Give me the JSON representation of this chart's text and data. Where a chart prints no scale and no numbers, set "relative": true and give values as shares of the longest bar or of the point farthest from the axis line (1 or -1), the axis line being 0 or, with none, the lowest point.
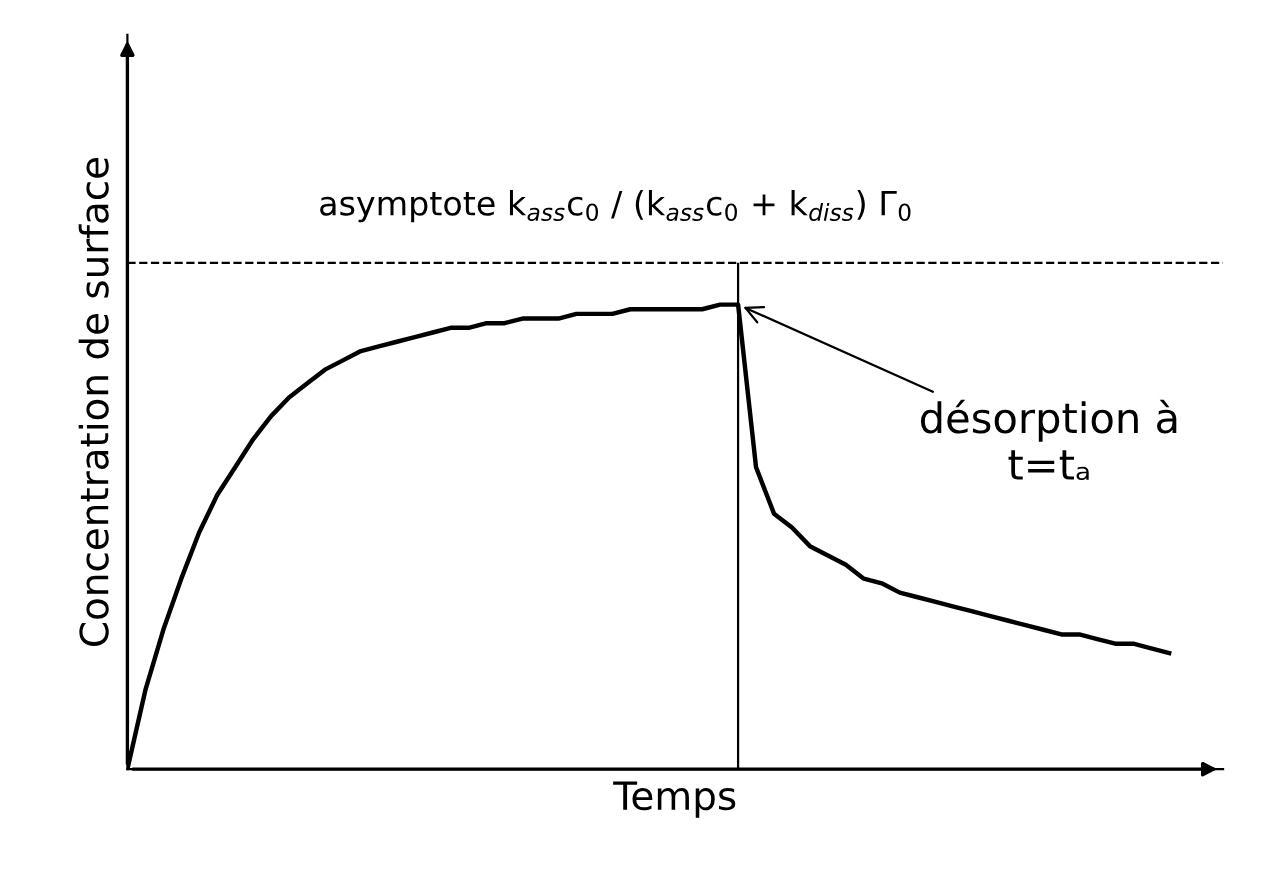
{
  "chart_data": {
    "type": "line",
    "relative": true,
    "xlabel": "Temps",
    "ylabel": "Concentration de surface",
    "categories": [
      null,
      null,
      null,
      null,
      null,
      null,
      null,
      null,
      null,
      null,
      null,
      null,
      null,
      null,
      null,
      null,
      null,
      null,
      null,
      null,
      null,
      null,
      null,
      null,
      null,
      null,
      null,
      null,
      null,
      null,
      null,
      null,
      null,
      null,
      null,
      null,
      null,
      null,
      null,
      null,
      null,
      null,
      null,
      null,
      null,
      null,
      null,
      null,
      null,
      null,
      null,
      null,
      null,
      null,
      null,
      null,
      null,
      null,
      null
    ],
    "series": [
      {
        "color": "#000000",
        "values": [
          0,
          0.17,
          0.3,
          0.41,
          0.51,
          0.59,
          0.65,
          0.71,
          0.76,
          0.8,
          0.83,
          0.86,
          0.88,
          0.9,
          0.91,
          0.92,
          0.93,
          0.94,
          0.95,
          0.95,
          0.96,
          0.96,
          0.97,
          0.97,
          0.97,
          0.98,
          0.98,
          0.98,
          0.99,
          0.99,
          0.99,
          0.99,
          0.99,
          1,
          1,
          0.65,
          0.55,
          0.52,
          0.48,
          0.46,
          0.44,
          0.41,
          0.4,
          0.38,
          0.37,
          0.36,
          0.35,
          0.34,
          0.33,
          0.32,
          0.31,
          0.3,
          0.29,
          0.29,
          0.28,
          0.27,
          0.27,
          0.26,
          0.25
        ]
      }
    ],
    "ref_lines": [
      {
        "axis": "y",
        "value": 1.09,
        "label": "asymptote k$_{ass}$c$_{0}$ / (k$_{ass}$c$_{0}$ + k$_{diss}$) Γ$_{0}$",
        "line_style": "dashed",
        "color": "#000000"
      }
    ],
    "annotations": [
      "désorption à\nt=tₐ"
    ],
    "marker": "none",
    "line_style": "solid",
    "legend": false
  }
}
